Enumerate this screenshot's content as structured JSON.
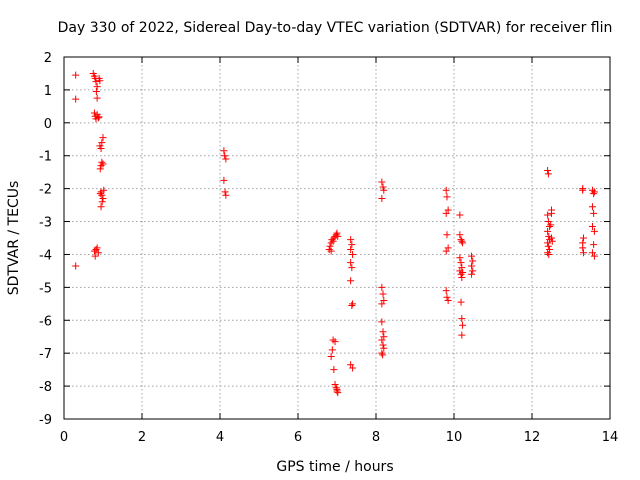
{
  "chart_data": {
    "type": "scatter",
    "title": "Day 330 of 2022, Sidereal Day-to-day VTEC variation (SDTVAR) for receiver flin",
    "xlabel": "GPS time / hours",
    "ylabel": "SDTVAR / TECUs",
    "xlim": [
      0,
      14
    ],
    "ylim": [
      -9,
      2
    ],
    "xticks": [
      0,
      2,
      4,
      6,
      8,
      10,
      12,
      14
    ],
    "yticks": [
      2,
      1,
      0,
      -1,
      -2,
      -3,
      -4,
      -5,
      -6,
      -7,
      -8,
      -9
    ],
    "xtick_labels": [
      "0",
      "2",
      "4",
      "6",
      "8",
      "10",
      "12",
      "14"
    ],
    "ytick_labels": [
      "2",
      "1",
      "0",
      "-1",
      "-2",
      "-3",
      "-4",
      "-5",
      "-6",
      "-7",
      "-8",
      "-9"
    ],
    "grid": true,
    "marker": "+",
    "color": "#ff0000",
    "series": [
      {
        "name": "SDTVAR",
        "points": [
          [
            0.3,
            1.45
          ],
          [
            0.3,
            0.72
          ],
          [
            0.3,
            -4.35
          ],
          [
            0.75,
            1.5
          ],
          [
            0.78,
            1.42
          ],
          [
            0.8,
            1.35
          ],
          [
            0.82,
            1.25
          ],
          [
            0.85,
            1.1
          ],
          [
            0.83,
            0.95
          ],
          [
            0.85,
            0.75
          ],
          [
            0.78,
            0.3
          ],
          [
            0.8,
            0.2
          ],
          [
            0.82,
            0.12
          ],
          [
            0.85,
            0.25
          ],
          [
            0.88,
            0.15
          ],
          [
            0.9,
            0.18
          ],
          [
            0.85,
            -3.8
          ],
          [
            0.78,
            -3.9
          ],
          [
            0.8,
            -4.05
          ],
          [
            0.88,
            -3.95
          ],
          [
            0.82,
            -3.85
          ],
          [
            0.9,
            1.35
          ],
          [
            0.92,
            1.28
          ],
          [
            0.92,
            -0.7
          ],
          [
            0.95,
            -0.78
          ],
          [
            0.97,
            -0.6
          ],
          [
            0.95,
            -1.3
          ],
          [
            0.97,
            -1.2
          ],
          [
            1.0,
            -1.25
          ],
          [
            0.93,
            -1.4
          ],
          [
            0.95,
            -2.1
          ],
          [
            0.97,
            -2.2
          ],
          [
            1.0,
            -2.3
          ],
          [
            0.93,
            -2.15
          ],
          [
            0.98,
            -2.4
          ],
          [
            0.95,
            -2.55
          ],
          [
            1.02,
            -2.05
          ],
          [
            1.0,
            -0.45
          ],
          [
            4.1,
            -0.85
          ],
          [
            4.12,
            -1.0
          ],
          [
            4.15,
            -1.1
          ],
          [
            4.1,
            -1.75
          ],
          [
            4.13,
            -2.1
          ],
          [
            4.15,
            -2.2
          ],
          [
            6.8,
            -3.85
          ],
          [
            6.82,
            -3.75
          ],
          [
            6.85,
            -3.65
          ],
          [
            6.87,
            -3.55
          ],
          [
            6.9,
            -3.6
          ],
          [
            6.92,
            -3.5
          ],
          [
            6.95,
            -3.45
          ],
          [
            6.98,
            -3.4
          ],
          [
            7.0,
            -3.35
          ],
          [
            7.02,
            -3.45
          ],
          [
            6.85,
            -3.9
          ],
          [
            6.9,
            -6.6
          ],
          [
            6.88,
            -6.9
          ],
          [
            6.85,
            -7.1
          ],
          [
            6.92,
            -7.5
          ],
          [
            6.95,
            -7.95
          ],
          [
            6.98,
            -8.05
          ],
          [
            7.0,
            -8.15
          ],
          [
            7.02,
            -8.2
          ],
          [
            6.95,
            -6.65
          ],
          [
            7.0,
            -8.1
          ],
          [
            7.35,
            -3.55
          ],
          [
            7.38,
            -3.7
          ],
          [
            7.35,
            -3.85
          ],
          [
            7.4,
            -4.0
          ],
          [
            7.35,
            -4.25
          ],
          [
            7.38,
            -4.4
          ],
          [
            7.35,
            -4.8
          ],
          [
            7.4,
            -5.5
          ],
          [
            7.38,
            -5.55
          ],
          [
            7.35,
            -7.35
          ],
          [
            7.4,
            -7.45
          ],
          [
            8.15,
            -1.8
          ],
          [
            8.18,
            -1.95
          ],
          [
            8.2,
            -2.05
          ],
          [
            8.15,
            -2.3
          ],
          [
            8.15,
            -5.0
          ],
          [
            8.18,
            -5.2
          ],
          [
            8.2,
            -5.4
          ],
          [
            8.15,
            -5.5
          ],
          [
            8.15,
            -6.05
          ],
          [
            8.18,
            -6.35
          ],
          [
            8.2,
            -6.5
          ],
          [
            8.15,
            -6.6
          ],
          [
            8.18,
            -6.75
          ],
          [
            8.2,
            -6.85
          ],
          [
            8.15,
            -7.0
          ],
          [
            8.17,
            -7.05
          ],
          [
            9.8,
            -2.05
          ],
          [
            9.82,
            -2.25
          ],
          [
            9.85,
            -2.65
          ],
          [
            9.8,
            -2.75
          ],
          [
            9.82,
            -3.4
          ],
          [
            9.85,
            -3.8
          ],
          [
            9.8,
            -3.9
          ],
          [
            9.8,
            -5.1
          ],
          [
            9.82,
            -5.3
          ],
          [
            9.85,
            -5.4
          ],
          [
            10.15,
            -2.8
          ],
          [
            10.15,
            -3.4
          ],
          [
            10.18,
            -3.55
          ],
          [
            10.2,
            -3.6
          ],
          [
            10.22,
            -3.65
          ],
          [
            10.15,
            -4.1
          ],
          [
            10.18,
            -4.25
          ],
          [
            10.2,
            -4.4
          ],
          [
            10.15,
            -4.5
          ],
          [
            10.22,
            -4.55
          ],
          [
            10.18,
            -4.6
          ],
          [
            10.2,
            -4.7
          ],
          [
            10.18,
            -5.45
          ],
          [
            10.2,
            -5.95
          ],
          [
            10.22,
            -6.15
          ],
          [
            10.2,
            -6.45
          ],
          [
            10.45,
            -4.05
          ],
          [
            10.48,
            -4.2
          ],
          [
            10.45,
            -4.35
          ],
          [
            10.48,
            -4.5
          ],
          [
            10.45,
            -4.6
          ],
          [
            12.4,
            -1.45
          ],
          [
            12.42,
            -1.55
          ],
          [
            12.4,
            -2.8
          ],
          [
            12.42,
            -3.0
          ],
          [
            12.45,
            -3.15
          ],
          [
            12.4,
            -3.3
          ],
          [
            12.43,
            -3.45
          ],
          [
            12.45,
            -3.55
          ],
          [
            12.4,
            -3.65
          ],
          [
            12.42,
            -3.75
          ],
          [
            12.45,
            -3.85
          ],
          [
            12.4,
            -3.95
          ],
          [
            12.43,
            -4.0
          ],
          [
            12.5,
            -2.65
          ],
          [
            12.5,
            -2.75
          ],
          [
            12.48,
            -3.1
          ],
          [
            12.5,
            -3.5
          ],
          [
            12.52,
            -3.6
          ],
          [
            13.3,
            -2.0
          ],
          [
            13.3,
            -2.05
          ],
          [
            13.32,
            -3.5
          ],
          [
            13.3,
            -3.65
          ],
          [
            13.3,
            -3.8
          ],
          [
            13.32,
            -3.95
          ],
          [
            13.55,
            -2.05
          ],
          [
            13.58,
            -2.15
          ],
          [
            13.6,
            -2.1
          ],
          [
            13.55,
            -2.55
          ],
          [
            13.58,
            -2.75
          ],
          [
            13.55,
            -3.15
          ],
          [
            13.6,
            -3.3
          ],
          [
            13.58,
            -3.7
          ],
          [
            13.55,
            -3.95
          ],
          [
            13.6,
            -4.05
          ]
        ]
      }
    ]
  }
}
